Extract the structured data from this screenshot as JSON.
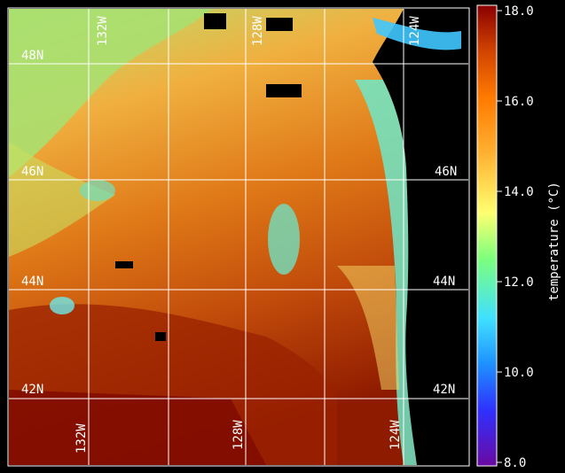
{
  "map": {
    "lat_labels": [
      "48N",
      "46N",
      "44N",
      "42N"
    ],
    "lon_labels_top": [
      "132W",
      "128W",
      "124W"
    ],
    "lon_labels_bottom": [
      "132W",
      "128W",
      "124W"
    ]
  },
  "colorbar": {
    "title": "temperature (°C)",
    "ticks": [
      "18.0",
      "16.0",
      "14.0",
      "12.0",
      "10.0",
      "8.0"
    ],
    "min": 8.0,
    "max": 18.0,
    "colors": [
      "#6a0aa0",
      "#3030ff",
      "#1e90ff",
      "#40e0ff",
      "#7dff7d",
      "#ffff70",
      "#ffb030",
      "#ff7a00",
      "#d24400",
      "#8a0000"
    ]
  }
}
